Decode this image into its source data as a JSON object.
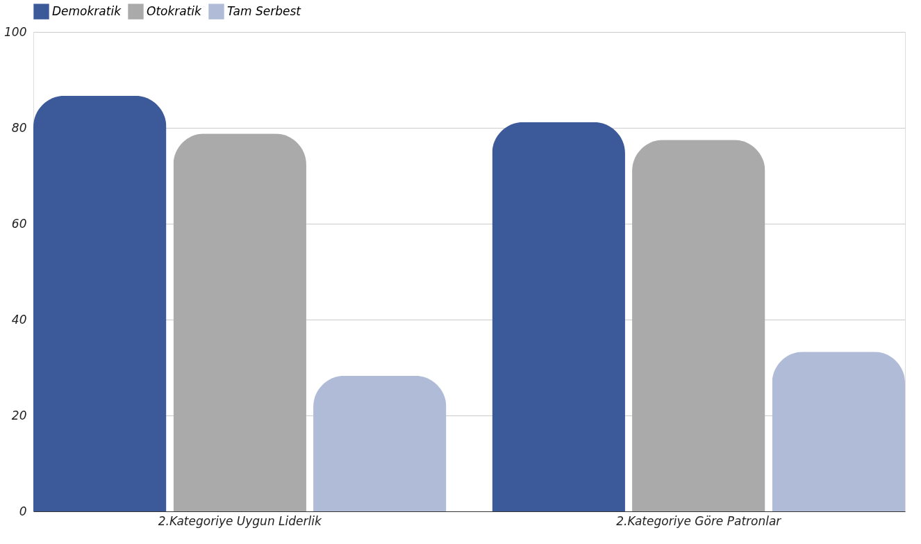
{
  "chart_data": {
    "type": "bar",
    "categories": [
      "2.Kategoriye Uygun Liderlik",
      "2.Kategoriye Göre Patronlar"
    ],
    "series": [
      {
        "name": "Demokratik",
        "color": "#3c5a99",
        "values": [
          86.7,
          81.2
        ]
      },
      {
        "name": "Otokratik",
        "color": "#aaaaaa",
        "values": [
          78.8,
          77.5
        ]
      },
      {
        "name": "Tam Serbest",
        "color": "#b0bcd7",
        "values": [
          28.3,
          33.3
        ]
      }
    ],
    "ylim": [
      0,
      100
    ],
    "yticks": [
      0,
      20,
      40,
      60,
      80,
      100
    ],
    "grid": "y",
    "legend": "top"
  }
}
